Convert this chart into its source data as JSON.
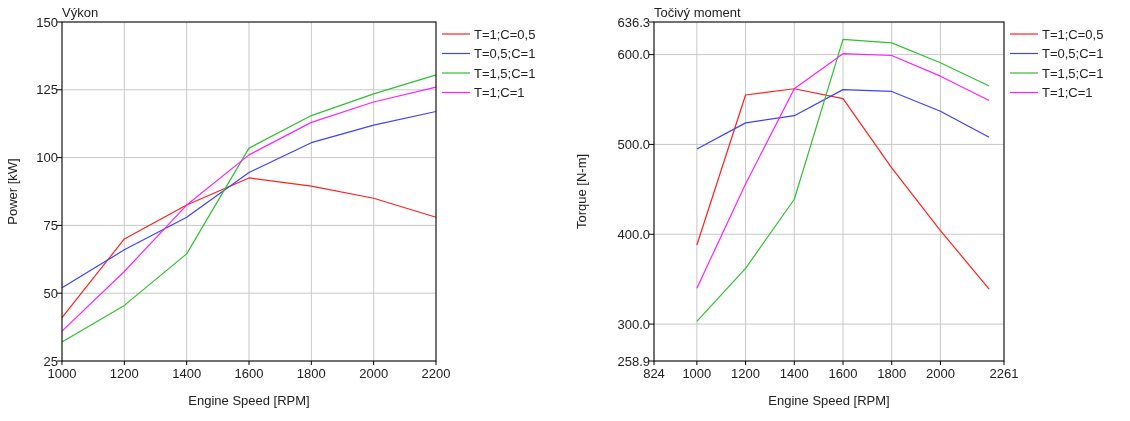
{
  "chart_data": [
    {
      "type": "line",
      "title": "Výkon",
      "xlabel": "Engine Speed [RPM]",
      "ylabel": "Power [kW]",
      "x": [
        1000,
        1200,
        1400,
        1600,
        1800,
        2000,
        2200
      ],
      "xlim": [
        1000,
        2200
      ],
      "xticks": [
        1000,
        1200,
        1400,
        1600,
        1800,
        2000,
        2200
      ],
      "ylim": [
        25,
        150
      ],
      "yticks": [
        25,
        50,
        75,
        100,
        125,
        150
      ],
      "grid": true,
      "legend": "top right",
      "series": [
        {
          "name": "T=1;C=0,5",
          "color": "#ff2020",
          "values": [
            41,
            70,
            82.5,
            92.5,
            89.5,
            85,
            78
          ]
        },
        {
          "name": "T=0,5;C=1",
          "color": "#4040ff",
          "values": [
            52,
            66,
            78,
            94.5,
            105.5,
            112,
            117
          ]
        },
        {
          "name": "T=1,5;C=1",
          "color": "#30c030",
          "values": [
            32,
            45.5,
            64.5,
            103.5,
            115.5,
            123.5,
            130.5
          ]
        },
        {
          "name": "T=1;C=1",
          "color": "#ff20ff",
          "values": [
            36,
            58,
            82.5,
            101,
            113,
            120.5,
            126
          ]
        }
      ]
    },
    {
      "type": "line",
      "title": "Točivý moment",
      "xlabel": "Engine Speed [RPM]",
      "ylabel": "Torque [N-m]",
      "x": [
        1000,
        1200,
        1400,
        1600,
        1800,
        2000,
        2200
      ],
      "xlim": [
        824,
        2261
      ],
      "xticks": [
        824,
        1000,
        1200,
        1400,
        1600,
        1800,
        2000,
        2261
      ],
      "ylim": [
        258.9,
        636.3
      ],
      "yticks": [
        258.9,
        {
          "value": 300,
          "label": "300.0"
        },
        {
          "value": 400,
          "label": "400.0"
        },
        {
          "value": 500,
          "label": "500.0"
        },
        {
          "value": 600,
          "label": "600.0"
        },
        636.3
      ],
      "grid": true,
      "legend": "top right",
      "series": [
        {
          "name": "T=1;C=0,5",
          "color": "#ff2020",
          "values": [
            388,
            555,
            562,
            551,
            474,
            404,
            339
          ]
        },
        {
          "name": "T=0,5;C=1",
          "color": "#4040ff",
          "values": [
            495,
            524,
            532,
            561,
            559,
            537,
            508
          ]
        },
        {
          "name": "T=1,5;C=1",
          "color": "#30c030",
          "values": [
            303,
            362,
            439,
            617,
            613,
            591,
            565
          ]
        },
        {
          "name": "T=1;C=1",
          "color": "#ff20ff",
          "values": [
            340,
            456,
            562,
            601,
            599,
            576,
            549
          ]
        }
      ]
    }
  ]
}
